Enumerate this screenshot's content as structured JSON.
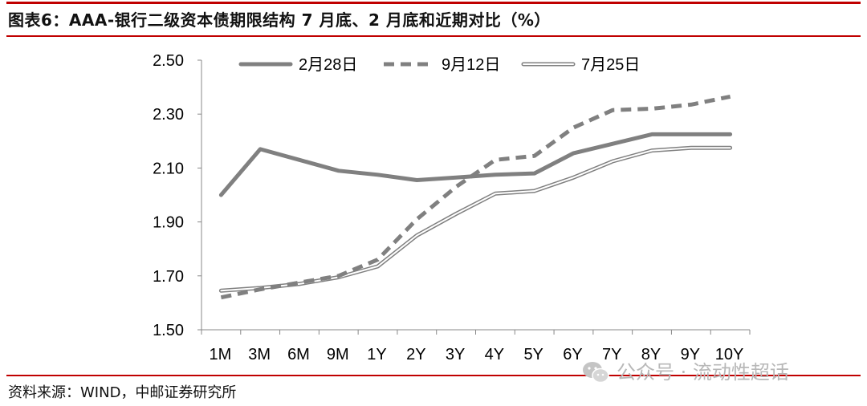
{
  "title": "图表6：AAA-银行二级资本债期限结构 7 月底、2 月底和近期对比（%）",
  "source": "资料来源：WIND，中邮证券研究所",
  "watermark": {
    "text": "公众号 · 流动性超话",
    "icon": "wechat-icon"
  },
  "colors": {
    "rule": "#c00000",
    "series": "#808080"
  },
  "chart_data": {
    "type": "line",
    "categories": [
      "1M",
      "3M",
      "6M",
      "9M",
      "1Y",
      "2Y",
      "3Y",
      "4Y",
      "5Y",
      "6Y",
      "7Y",
      "8Y",
      "9Y",
      "10Y"
    ],
    "ylim": [
      1.5,
      2.5
    ],
    "yticks": [
      "1.50",
      "1.70",
      "1.90",
      "2.10",
      "2.30",
      "2.50"
    ],
    "grid": false,
    "legend_position": "top",
    "series": [
      {
        "name": "2月28日",
        "style": "solid-thick",
        "values": [
          2.0,
          2.17,
          2.13,
          2.09,
          2.075,
          2.055,
          2.065,
          2.075,
          2.08,
          2.155,
          2.19,
          2.225,
          2.225,
          2.225
        ]
      },
      {
        "name": "9月12日",
        "style": "dashed",
        "values": [
          1.62,
          1.65,
          1.675,
          1.7,
          1.76,
          1.91,
          2.03,
          2.13,
          2.145,
          2.25,
          2.315,
          2.32,
          2.335,
          2.365
        ]
      },
      {
        "name": "7月25日",
        "style": "double",
        "values": [
          1.645,
          1.655,
          1.67,
          1.695,
          1.735,
          1.85,
          1.93,
          2.005,
          2.015,
          2.065,
          2.125,
          2.165,
          2.175,
          2.175
        ]
      }
    ]
  }
}
